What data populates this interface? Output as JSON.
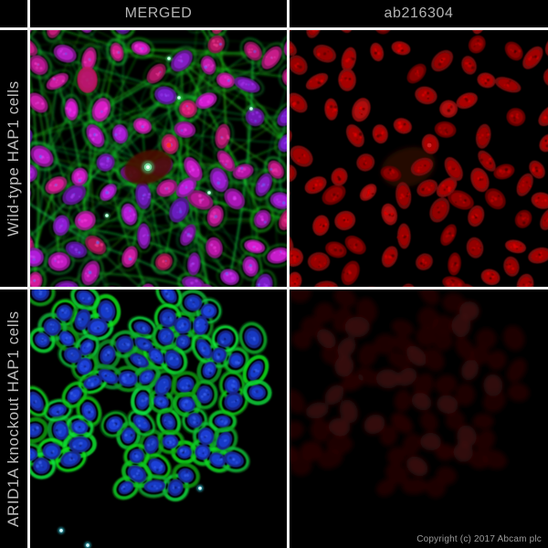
{
  "figure": {
    "columns": [
      {
        "label": "MERGED"
      },
      {
        "label": "ab216304"
      }
    ],
    "rows": [
      {
        "label": "Wild-type HAP1 cells"
      },
      {
        "label": "ARID1A knockout HAP1 cells"
      }
    ],
    "copyright": "Copyright (c) 2017 Abcam plc",
    "colors": {
      "background": "#000000",
      "divider": "#f2f2f2",
      "header_text": "#b3b3b3",
      "row_label_text": "#bdbdbd",
      "copyright_text": "#9b9b9b",
      "red_channel": "#cc1414",
      "green_channel": "#1fae1f",
      "blue_channel": "#2a3fd8",
      "magenta_nuclei": "#b428a0",
      "faint_red": "#2a0707"
    },
    "panels": [
      {
        "key": "merged-wildtype",
        "row": "Wild-type HAP1 cells",
        "column": "MERGED",
        "channels": [
          "red",
          "green",
          "blue"
        ],
        "seed": 11,
        "cells": 92
      },
      {
        "key": "red-wildtype",
        "row": "Wild-type HAP1 cells",
        "column": "ab216304",
        "channels": [
          "red"
        ],
        "seed": 11,
        "cells": 92
      },
      {
        "key": "merged-knockout",
        "row": "ARID1A knockout HAP1 cells",
        "column": "MERGED",
        "channels": [
          "green",
          "blue"
        ],
        "seed": 47,
        "cells": 80
      },
      {
        "key": "red-knockout",
        "row": "ARID1A knockout HAP1 cells",
        "column": "ab216304",
        "channels": [
          "faint-red"
        ],
        "seed": 47,
        "cells": 80
      }
    ]
  }
}
